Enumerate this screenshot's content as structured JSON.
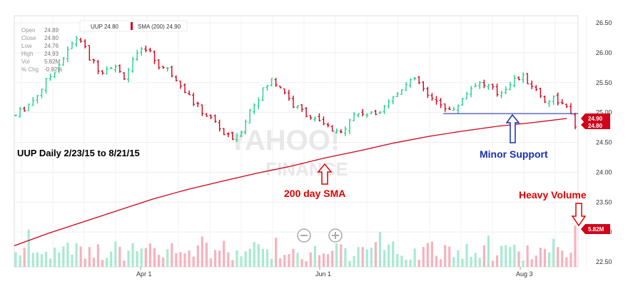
{
  "chart_data": {
    "type": "ohlc",
    "title": "UUP Daily 2/23/15 to 8/21/15",
    "ohlc_panel": {
      "labels": [
        "Open",
        "Close",
        "Low",
        "High",
        "Vol",
        "% Chg"
      ],
      "values": [
        "24.89",
        "24.80",
        "24.76",
        "24.93",
        "5.82M",
        "-0.92%"
      ]
    },
    "legend": [
      {
        "name": "UUP 24.80",
        "color": "#555555"
      },
      {
        "name": "SMA (200) 24.90",
        "color": "#d0021b"
      }
    ],
    "y_ticks": [
      "26.50",
      "26.00",
      "25.50",
      "25.00",
      "24.50",
      "24.00",
      "23.50",
      "23.00",
      "22.50"
    ],
    "ylim": [
      22.5,
      26.5
    ],
    "x_ticks": [
      "Apr 1",
      "Jun 1",
      "Aug 3"
    ],
    "colors": {
      "up": "#1fd08a",
      "down": "#d0021b",
      "sma": "#d0021b",
      "support": "#1a2fb5",
      "vol_up": "#a8ead1",
      "vol_down": "#f6b2be"
    },
    "price_tag": "24.90",
    "price_tag2": "24.80",
    "volume_tag": "5.82M",
    "sma_200": [
      [
        0,
        22.77
      ],
      [
        20,
        22.98
      ],
      [
        40,
        23.17
      ],
      [
        60,
        23.36
      ],
      [
        80,
        23.55
      ],
      [
        100,
        23.71
      ],
      [
        119,
        23.84
      ],
      [
        140,
        23.98
      ],
      [
        160,
        24.1
      ],
      [
        180,
        24.24
      ],
      [
        200,
        24.36
      ],
      [
        220,
        24.49
      ],
      [
        240,
        24.6
      ],
      [
        260,
        24.69
      ],
      [
        280,
        24.77
      ],
      [
        300,
        24.83
      ],
      [
        320,
        24.9
      ]
    ],
    "support_level": 24.98,
    "annotations": {
      "sma": "200 day SMA",
      "support": "Minor Support",
      "volume": "Heavy Volume"
    },
    "watermark": [
      "YAHOO!",
      "FINANCE"
    ]
  }
}
